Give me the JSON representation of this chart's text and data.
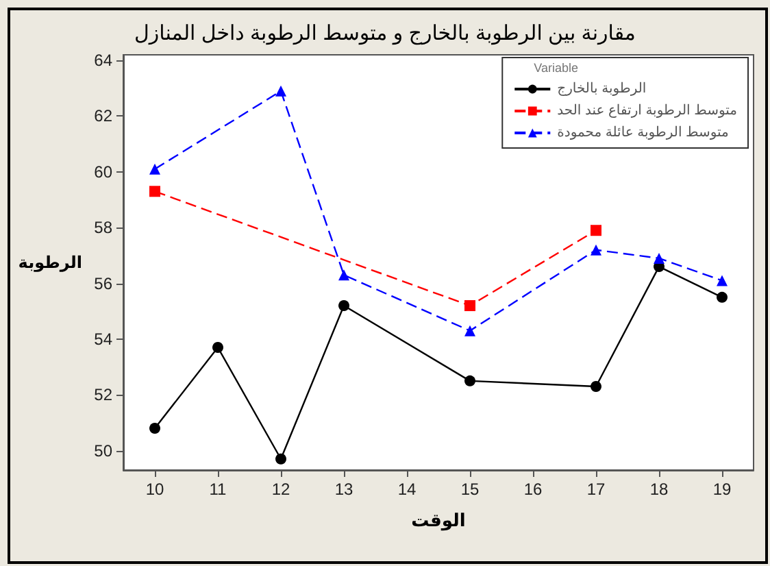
{
  "chart_data": {
    "type": "line",
    "title": "مقارنة بين الرطوبة بالخارج و متوسط الرطوبة داخل المنازل",
    "xlabel": "الوقت",
    "ylabel": "الرطوبة",
    "legend_title": "Variable",
    "legend": "top right",
    "grid": false,
    "xlim": [
      9.5,
      19.5
    ],
    "xticks": [
      10,
      11,
      12,
      13,
      14,
      15,
      16,
      17,
      18,
      19
    ],
    "ylim": [
      49.3,
      64.2
    ],
    "yticks": [
      50,
      52,
      54,
      56,
      58,
      60,
      62,
      64
    ],
    "series": [
      {
        "name": "الرطوبة بالخارج",
        "color": "#000000",
        "marker": "circle",
        "line_style": "solid",
        "x": [
          10,
          11,
          12,
          13,
          15,
          17,
          18,
          19
        ],
        "values": [
          50.8,
          53.7,
          49.7,
          55.2,
          52.5,
          52.3,
          56.6,
          55.5
        ]
      },
      {
        "name": "متوسط الرطوبة ارتفاع عند الحد",
        "color": "#ff0000",
        "marker": "square",
        "line_style": "dashed",
        "x": [
          10,
          15,
          17
        ],
        "values": [
          59.3,
          55.2,
          57.9
        ]
      },
      {
        "name": "متوسط الرطوبة عائلة محمودة",
        "color": "#0000ff",
        "marker": "triangle",
        "line_style": "dashed",
        "x": [
          10,
          12,
          13,
          15,
          17,
          18,
          19
        ],
        "values": [
          60.1,
          62.9,
          56.3,
          54.3,
          57.2,
          56.9,
          56.1
        ]
      }
    ]
  }
}
